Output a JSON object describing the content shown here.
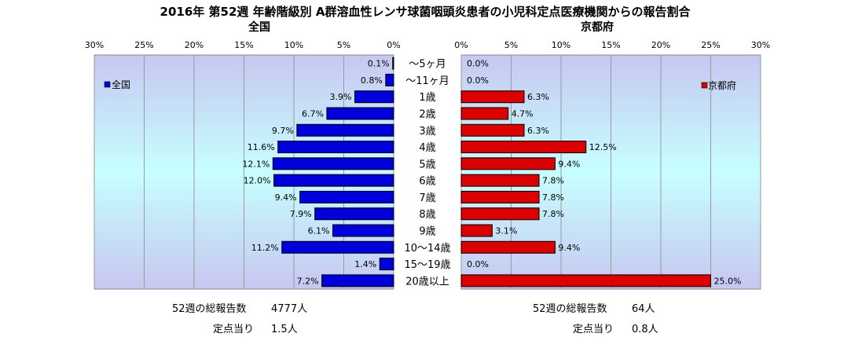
{
  "title": "2016年 第52週 年齢階級別 A群溶血性レンサ球菌咽頭炎患者の小児科定点医療機関からの報告割合",
  "chart_data": {
    "type": "bar",
    "orientation": "horizontal-butterfly",
    "categories": [
      "～5ヶ月",
      "～11ヶ月",
      "1歳",
      "2歳",
      "3歳",
      "4歳",
      "5歳",
      "6歳",
      "7歳",
      "8歳",
      "9歳",
      "10～14歳",
      "15～19歳",
      "20歳以上"
    ],
    "xlim": [
      0,
      30
    ],
    "ticks": [
      "30%",
      "25%",
      "20%",
      "15%",
      "10%",
      "5%",
      "0%"
    ],
    "ticks_right": [
      "0%",
      "5%",
      "10%",
      "15%",
      "20%",
      "25%",
      "30%"
    ],
    "grid": true,
    "legend_position": "inside-top",
    "series": [
      {
        "name": "全国",
        "panel_title": "全国",
        "side": "left",
        "color": "#0000dd",
        "values": [
          0.1,
          0.8,
          3.9,
          6.7,
          9.7,
          11.6,
          12.1,
          12.0,
          9.4,
          7.9,
          6.1,
          11.2,
          1.4,
          7.2
        ],
        "labels": [
          "0.1%",
          "0.8%",
          "3.9%",
          "6.7%",
          "9.7%",
          "11.6%",
          "12.1%",
          "12.0%",
          "9.4%",
          "7.9%",
          "6.1%",
          "11.2%",
          "1.4%",
          "7.2%"
        ]
      },
      {
        "name": "京都府",
        "panel_title": "京都府",
        "side": "right",
        "color": "#dd0000",
        "values": [
          0.0,
          0.0,
          6.3,
          4.7,
          6.3,
          12.5,
          9.4,
          7.8,
          7.8,
          7.8,
          3.1,
          9.4,
          0.0,
          25.0
        ],
        "labels": [
          "0.0%",
          "0.0%",
          "6.3%",
          "4.7%",
          "6.3%",
          "12.5%",
          "9.4%",
          "7.8%",
          "7.8%",
          "7.8%",
          "3.1%",
          "9.4%",
          "0.0%",
          "25.0%"
        ]
      }
    ]
  },
  "footer": {
    "left": {
      "total_label": "52週の総報告数",
      "total_value": "4777人",
      "per_label": "定点当り",
      "per_value": "1.5人"
    },
    "right": {
      "total_label": "52週の総報告数",
      "total_value": "64人",
      "per_label": "定点当り",
      "per_value": "0.8人"
    }
  }
}
